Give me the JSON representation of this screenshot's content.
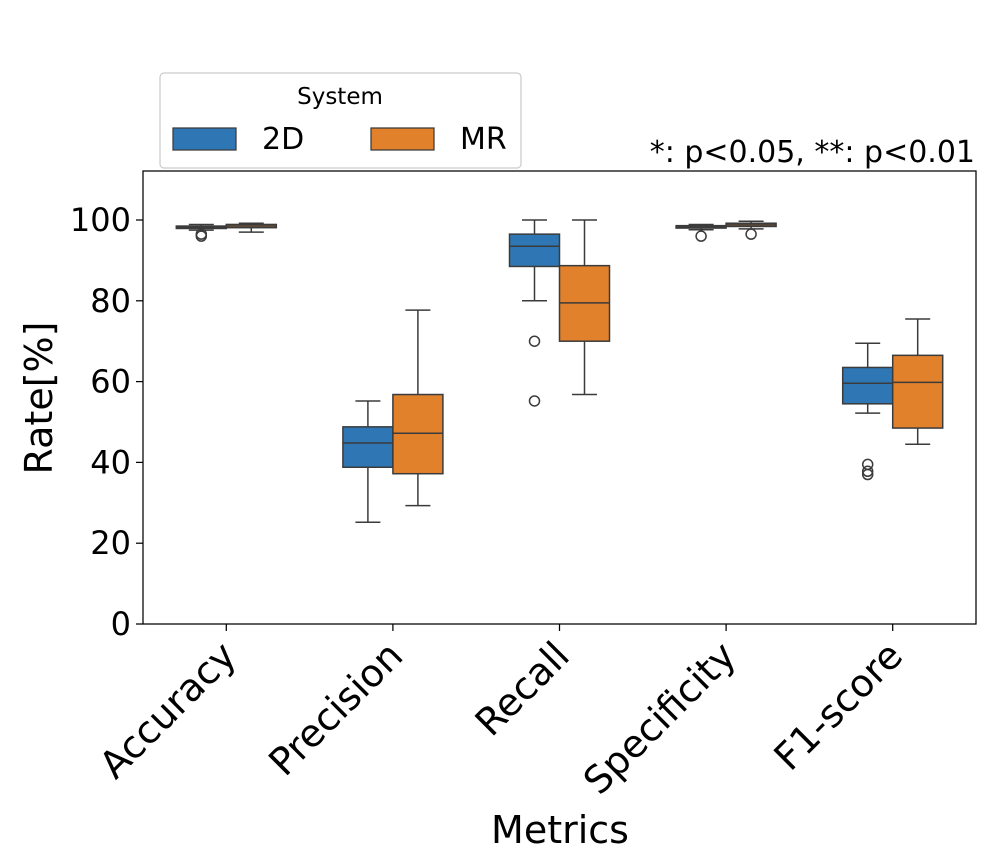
{
  "chart_data": {
    "type": "box",
    "title": "",
    "annotation": "*: p<0.05, **: p<0.01",
    "xlabel": "Metrics",
    "ylabel": "Rate[%]",
    "ylim": [
      0,
      112
    ],
    "yticks": [
      0,
      20,
      40,
      60,
      80,
      100
    ],
    "categories": [
      "Accuracy",
      "Precision",
      "Recall",
      "Specificity",
      "F1-score"
    ],
    "legend": {
      "title": "System",
      "position": "top-left (above axes)"
    },
    "series": [
      {
        "name": "2D",
        "color": "#2f77b4",
        "boxes": [
          {
            "whislo": 97.5,
            "q1": 97.9,
            "med": 98.2,
            "q3": 98.5,
            "whishi": 98.9,
            "fliers": [
              96.5,
              96.0
            ]
          },
          {
            "whislo": 25.2,
            "q1": 38.8,
            "med": 44.8,
            "q3": 48.8,
            "whishi": 55.2,
            "fliers": []
          },
          {
            "whislo": 80.0,
            "q1": 88.5,
            "med": 93.5,
            "q3": 96.5,
            "whishi": 100.0,
            "fliers": [
              70.0,
              55.2
            ]
          },
          {
            "whislo": 97.6,
            "q1": 98.0,
            "med": 98.3,
            "q3": 98.6,
            "whishi": 98.9,
            "fliers": [
              96.0
            ]
          },
          {
            "whislo": 52.2,
            "q1": 54.5,
            "med": 59.6,
            "q3": 63.5,
            "whishi": 69.5,
            "fliers": [
              39.5,
              37.8,
              37.0
            ]
          }
        ]
      },
      {
        "name": "MR",
        "color": "#e1812c",
        "boxes": [
          {
            "whislo": 97.0,
            "q1": 98.1,
            "med": 98.5,
            "q3": 98.9,
            "whishi": 99.2,
            "fliers": []
          },
          {
            "whislo": 29.3,
            "q1": 37.2,
            "med": 47.2,
            "q3": 56.8,
            "whishi": 77.7,
            "fliers": []
          },
          {
            "whislo": 56.8,
            "q1": 70.0,
            "med": 79.5,
            "q3": 88.7,
            "whishi": 100.0,
            "fliers": []
          },
          {
            "whislo": 97.8,
            "q1": 98.4,
            "med": 98.8,
            "q3": 99.2,
            "whishi": 99.7,
            "fliers": [
              96.5
            ]
          },
          {
            "whislo": 44.5,
            "q1": 48.5,
            "med": 59.8,
            "q3": 66.5,
            "whishi": 75.5,
            "fliers": []
          }
        ]
      }
    ]
  }
}
